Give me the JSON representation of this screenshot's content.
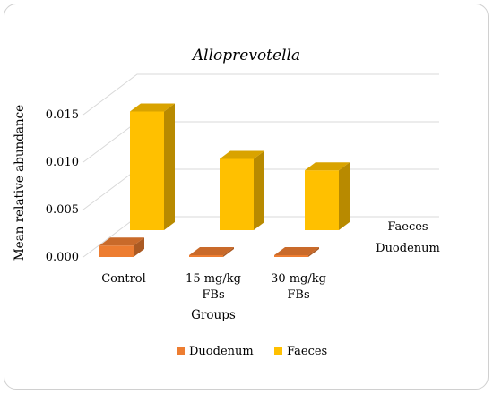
{
  "chart_data": {
    "type": "bar",
    "title": "Alloprevotella",
    "xlabel": "Groups",
    "ylabel": "Mean relative abundance",
    "categories": [
      "Control",
      "15 mg/kg FBs",
      "30 mg/kg FBs"
    ],
    "category_lines": [
      [
        "Control"
      ],
      [
        "15 mg/kg",
        "FBs"
      ],
      [
        "30 mg/kg",
        "FBs"
      ]
    ],
    "series": [
      {
        "name": "Duodenum",
        "values": [
          0.0012,
          0.0001,
          0.0001
        ],
        "color": "#ED7D31"
      },
      {
        "name": "Faeces",
        "values": [
          0.0125,
          0.0075,
          0.0063
        ],
        "color": "#FFC000"
      }
    ],
    "yticks": [
      "0.000",
      "0.005",
      "0.010",
      "0.015"
    ],
    "ylim": [
      0,
      0.015
    ],
    "legend_position": "bottom",
    "grid": true,
    "three_d": true
  }
}
